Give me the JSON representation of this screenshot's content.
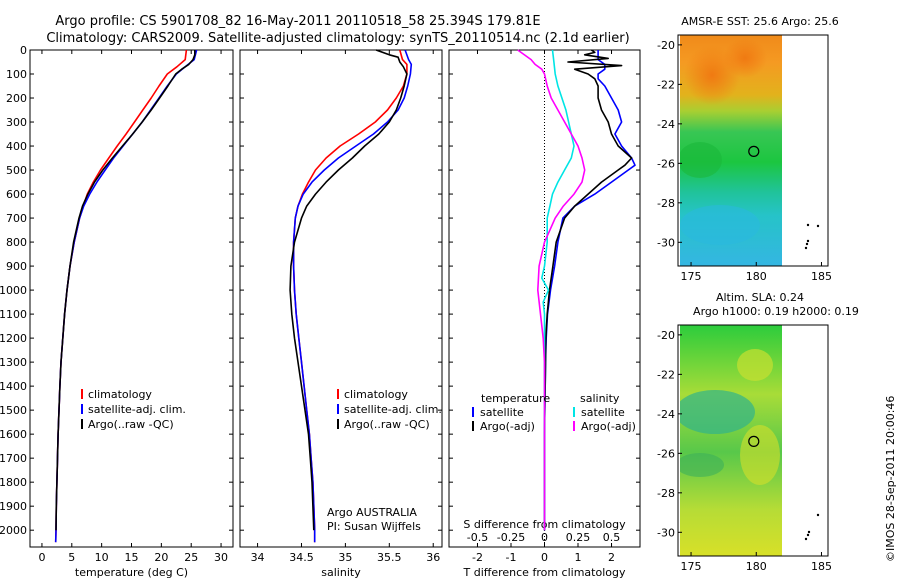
{
  "title_line1": "Argo profile: CS 5901708_82 16-May-2011 20110518_58 25.394S 179.81E",
  "title_line2": "Climatology: CARS2009. Satellite-adjusted climatology: synTS_20110514.nc (2.1d earlier)",
  "credit": "©IMOS 28-Sep-2011 20:00:46",
  "colors": {
    "climatology": "#ff0000",
    "satellite": "#0000ff",
    "argo": "#000000",
    "sat_s": "#00e5e5",
    "argo_s": "#ff00ff"
  },
  "chart_data": [
    {
      "type": "line",
      "xlabel": "temperature (deg C)",
      "x_ticks": [
        "0",
        "5",
        "10",
        "15",
        "20",
        "25",
        "30"
      ],
      "y_ticks": [
        "0",
        "100",
        "200",
        "300",
        "400",
        "500",
        "600",
        "700",
        "800",
        "900",
        "1000",
        "1100",
        "1200",
        "1300",
        "1400",
        "1500",
        "1600",
        "1700",
        "1800",
        "1900",
        "2000"
      ],
      "xlim": [
        -2,
        32
      ],
      "ylim": [
        2070,
        0
      ],
      "legend": [
        "climatology",
        "satellite-adj. clim.",
        "Argo(..raw -QC)"
      ],
      "series": [
        {
          "name": "climatology",
          "depth": [
            0,
            40,
            70,
            100,
            150,
            200,
            250,
            300,
            350,
            400,
            450,
            500,
            550,
            600,
            650,
            700,
            800,
            900,
            1000,
            1100,
            1200,
            1300,
            1400,
            1500,
            1600,
            1700,
            1800,
            1900,
            2000,
            2050
          ],
          "values": [
            24.2,
            24.0,
            22.6,
            21.0,
            19.6,
            18.3,
            16.9,
            15.5,
            14.1,
            12.6,
            11.2,
            9.8,
            8.6,
            7.6,
            6.9,
            6.3,
            5.4,
            4.7,
            4.2,
            3.8,
            3.5,
            3.2,
            3.0,
            2.85,
            2.7,
            2.6,
            2.5,
            2.4,
            2.35,
            2.3
          ]
        },
        {
          "name": "satellite-adj. clim.",
          "depth": [
            0,
            40,
            70,
            100,
            150,
            200,
            250,
            300,
            350,
            400,
            450,
            500,
            550,
            600,
            650,
            700,
            800,
            900,
            1000,
            1100,
            1200,
            1300,
            1400,
            1500,
            1600,
            1700,
            1800,
            1900,
            2000,
            2050
          ],
          "values": [
            25.9,
            25.5,
            24.0,
            22.5,
            21.0,
            19.6,
            18.2,
            16.8,
            15.2,
            13.6,
            12.0,
            10.6,
            9.2,
            8.0,
            7.0,
            6.3,
            5.4,
            4.7,
            4.2,
            3.8,
            3.5,
            3.2,
            3.0,
            2.85,
            2.7,
            2.6,
            2.5,
            2.4,
            2.35,
            2.3
          ]
        },
        {
          "name": "Argo(..raw -QC)",
          "depth": [
            0,
            20,
            40,
            60,
            80,
            100,
            150,
            200,
            250,
            300,
            350,
            400,
            450,
            500,
            550,
            600,
            650,
            700,
            800,
            900,
            1000,
            1100,
            1200,
            1300,
            1400,
            1500,
            1600,
            1700,
            1800,
            1900,
            2000
          ],
          "values": [
            25.6,
            25.6,
            25.3,
            24.6,
            23.4,
            22.4,
            21.1,
            19.7,
            18.3,
            16.8,
            15.2,
            13.5,
            11.8,
            10.2,
            8.8,
            7.7,
            6.8,
            6.2,
            5.3,
            4.7,
            4.2,
            3.8,
            3.5,
            3.2,
            3.0,
            2.85,
            2.7,
            2.6,
            2.5,
            2.4,
            2.35
          ]
        }
      ]
    },
    {
      "type": "line",
      "xlabel": "salinity",
      "x_ticks": [
        "34",
        "34.5",
        "35",
        "35.5",
        "36"
      ],
      "xlim": [
        33.8,
        36.1
      ],
      "ylim": [
        2070,
        0
      ],
      "legend": [
        "climatology",
        "satellite-adj. clim.",
        "Argo(..raw -QC)"
      ],
      "annotation": [
        "Argo AUSTRALIA",
        "PI: Susan Wijffels"
      ],
      "series": [
        {
          "name": "climatology",
          "depth": [
            0,
            40,
            60,
            100,
            150,
            200,
            250,
            300,
            350,
            400,
            450,
            500,
            550,
            600,
            650,
            700,
            800,
            900,
            1000,
            1100,
            1200,
            1300,
            1400,
            1500,
            1600,
            1700,
            1800,
            1900,
            2000,
            2050
          ],
          "values": [
            35.62,
            35.65,
            35.7,
            35.7,
            35.66,
            35.58,
            35.48,
            35.34,
            35.15,
            34.94,
            34.78,
            34.66,
            34.58,
            34.51,
            34.46,
            34.43,
            34.41,
            34.41,
            34.42,
            34.44,
            34.47,
            34.5,
            34.53,
            34.56,
            34.59,
            34.61,
            34.63,
            34.64,
            34.65,
            34.65
          ]
        },
        {
          "name": "satellite-adj. clim.",
          "depth": [
            0,
            40,
            60,
            100,
            150,
            200,
            250,
            300,
            350,
            400,
            450,
            500,
            550,
            600,
            650,
            700,
            800,
            900,
            1000,
            1100,
            1200,
            1300,
            1400,
            1500,
            1600,
            1700,
            1800,
            1900,
            2000,
            2050
          ],
          "values": [
            35.68,
            35.72,
            35.75,
            35.74,
            35.71,
            35.67,
            35.6,
            35.48,
            35.32,
            35.12,
            34.92,
            34.76,
            34.62,
            34.52,
            34.46,
            34.43,
            34.41,
            34.41,
            34.42,
            34.44,
            34.47,
            34.5,
            34.53,
            34.56,
            34.59,
            34.61,
            34.63,
            34.64,
            34.65,
            34.65
          ]
        },
        {
          "name": "Argo(..raw -QC)",
          "depth": [
            0,
            20,
            30,
            50,
            70,
            100,
            150,
            200,
            250,
            300,
            350,
            400,
            450,
            500,
            550,
            600,
            650,
            700,
            750,
            800,
            900,
            1000,
            1100,
            1200,
            1300,
            1400,
            1500,
            1600,
            1700,
            1800,
            1900,
            2000
          ],
          "values": [
            35.35,
            35.5,
            35.6,
            35.62,
            35.66,
            35.7,
            35.67,
            35.63,
            35.58,
            35.5,
            35.38,
            35.22,
            35.08,
            34.92,
            34.78,
            34.66,
            34.56,
            34.5,
            34.46,
            34.42,
            34.38,
            34.37,
            34.39,
            34.42,
            34.46,
            34.5,
            34.54,
            34.58,
            34.6,
            34.62,
            34.63,
            34.64
          ]
        }
      ]
    },
    {
      "type": "line",
      "xlabel": "T difference from climatology",
      "x_ticks": [
        "-2",
        "-1",
        "0",
        "1",
        "2"
      ],
      "x2label": "S difference from climatology",
      "x2_ticks": [
        "-0.5",
        "-0.25",
        "0",
        "0.25",
        "0.5"
      ],
      "xlim": [
        -2.85,
        2.85
      ],
      "ylim": [
        2070,
        0
      ],
      "legend": {
        "temperature": [
          "satellite",
          "Argo(-adj)"
        ],
        "salinity": [
          "satellite",
          "Argo(-adj)"
        ]
      },
      "legend_headers": [
        "temperature",
        "salinity"
      ],
      "series": [
        {
          "name": "satellite",
          "group": "temperature",
          "depth": [
            0,
            20,
            40,
            60,
            80,
            100,
            120,
            150,
            200,
            250,
            300,
            350,
            400,
            450,
            480,
            500,
            550,
            600,
            650,
            700,
            800,
            900,
            1000,
            1100,
            1200,
            1300,
            1400,
            1500,
            1600,
            1700,
            1800,
            1900,
            2000
          ],
          "values": [
            1.6,
            1.6,
            1.6,
            1.8,
            1.8,
            1.6,
            1.6,
            1.8,
            2.0,
            2.2,
            2.3,
            2.1,
            2.3,
            2.6,
            2.7,
            2.5,
            2.0,
            1.5,
            0.9,
            0.55,
            0.4,
            0.3,
            0.18,
            0.09,
            0.05,
            0.03,
            0.02,
            0.01,
            0.0,
            0.0,
            0.0,
            0.0,
            0.0
          ]
        },
        {
          "name": "Argo(-adj)",
          "group": "temperature",
          "depth": [
            0,
            10,
            20,
            35,
            50,
            65,
            80,
            100,
            120,
            150,
            200,
            250,
            300,
            350,
            400,
            450,
            480,
            500,
            550,
            600,
            650,
            700,
            800,
            900,
            1000,
            1100,
            1200,
            1300,
            1400,
            1500,
            1600,
            1700,
            1800,
            1900,
            2000
          ],
          "values": [
            1.4,
            1.5,
            1.2,
            1.9,
            0.7,
            2.3,
            0.9,
            1.3,
            1.5,
            1.6,
            1.6,
            1.7,
            1.9,
            2.0,
            2.2,
            2.6,
            2.4,
            2.2,
            1.7,
            1.3,
            0.9,
            0.6,
            0.35,
            0.25,
            0.15,
            0.08,
            0.04,
            0.03,
            0.02,
            0.01,
            0.0,
            0.0,
            0.0,
            0.0,
            0.0
          ]
        },
        {
          "name": "satellite",
          "group": "salinity",
          "depth": [
            0,
            50,
            100,
            150,
            200,
            250,
            300,
            350,
            400,
            450,
            500,
            550,
            600,
            650,
            700,
            800,
            900,
            950,
            1000,
            1050,
            1100,
            1200,
            1300,
            1400,
            1500,
            1600,
            1700,
            1800,
            1900,
            2000
          ],
          "values": [
            0.06,
            0.07,
            0.08,
            0.1,
            0.13,
            0.16,
            0.18,
            0.2,
            0.22,
            0.2,
            0.15,
            0.1,
            0.06,
            0.04,
            0.02,
            0.02,
            0.0,
            -0.02,
            0.03,
            -0.01,
            0.0,
            0.0,
            0.0,
            0.0,
            0.0,
            0.0,
            0.0,
            0.0,
            0.0,
            0.0
          ]
        },
        {
          "name": "Argo(-adj)",
          "group": "salinity",
          "depth": [
            0,
            40,
            60,
            80,
            100,
            150,
            200,
            250,
            300,
            350,
            400,
            450,
            500,
            550,
            600,
            650,
            700,
            750,
            800,
            900,
            1000,
            1100,
            1200,
            1300,
            1400,
            1500,
            1600,
            1700,
            1800,
            1900,
            2000
          ],
          "values": [
            -0.2,
            -0.1,
            -0.07,
            -0.02,
            0.0,
            0.02,
            0.05,
            0.1,
            0.15,
            0.2,
            0.25,
            0.28,
            0.3,
            0.28,
            0.22,
            0.14,
            0.08,
            0.04,
            0.0,
            -0.04,
            -0.05,
            -0.03,
            -0.01,
            0.0,
            0.0,
            0.0,
            0.0,
            0.0,
            0.0,
            0.0,
            0.0
          ]
        }
      ]
    },
    {
      "type": "heatmap",
      "title": "AMSR-E SST: 25.6  Argo: 25.6",
      "x_ticks": [
        "175",
        "180",
        "185"
      ],
      "y_ticks": [
        "-20",
        "-22",
        "-24",
        "-26",
        "-28",
        "-30"
      ],
      "xlim": [
        174,
        185.5
      ],
      "ylim": [
        -31.2,
        -19.5
      ],
      "marker": {
        "lon": 179.81,
        "lat": -25.394
      }
    },
    {
      "type": "heatmap",
      "title": "Altim. SLA: 0.24",
      "subtitle": "Argo h1000: 0.19 h2000: 0.19",
      "x_ticks": [
        "175",
        "180",
        "185"
      ],
      "y_ticks": [
        "-20",
        "-22",
        "-24",
        "-26",
        "-28",
        "-30"
      ],
      "xlim": [
        174,
        185.5
      ],
      "ylim": [
        -31.2,
        -19.5
      ],
      "marker": {
        "lon": 179.81,
        "lat": -25.394
      }
    }
  ]
}
